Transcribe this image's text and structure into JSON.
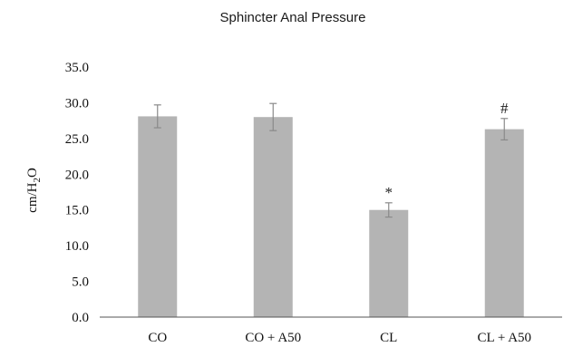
{
  "chart_data": {
    "type": "bar",
    "title": "Sphincter Anal Pressure",
    "ylabel": "cm/H2O",
    "ylabel_parts": {
      "main": "cm/H",
      "sub": "2",
      "tail": "O"
    },
    "ylim": [
      0,
      35
    ],
    "yticks": [
      "0.0",
      "5.0",
      "10.0",
      "15.0",
      "20.0",
      "25.0",
      "30.0",
      "35.0"
    ],
    "categories": [
      "CO",
      "CO + A50",
      "CL",
      "CL + A50"
    ],
    "values": [
      28.1,
      28.0,
      15.0,
      26.3
    ],
    "errors": [
      1.6,
      1.9,
      1.0,
      1.5
    ],
    "annotations": [
      "",
      "",
      "*",
      "#"
    ],
    "bar_color": "#b4b4b4",
    "error_color": "#8a8a8a",
    "grid": false
  }
}
